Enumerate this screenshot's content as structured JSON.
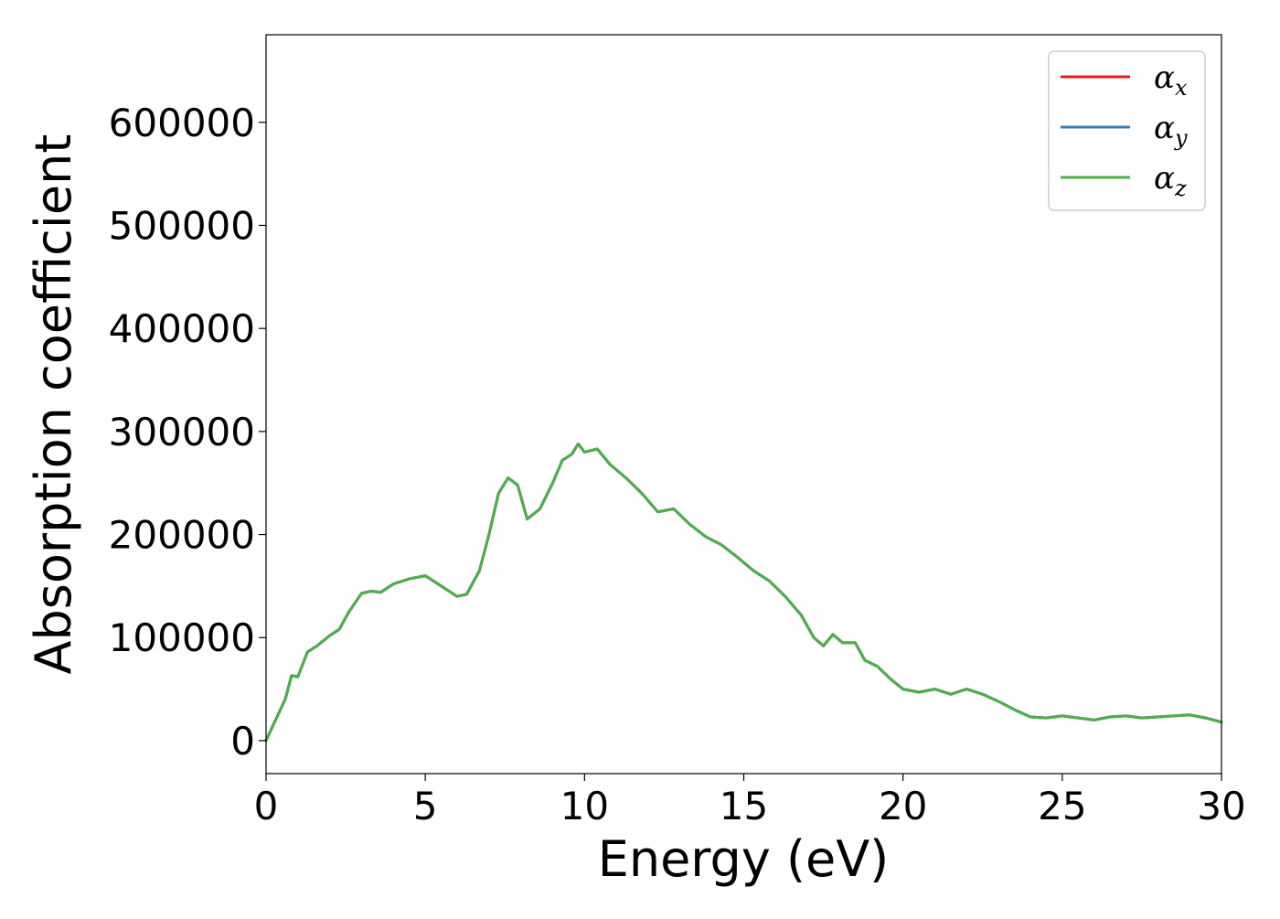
{
  "chart_data": {
    "type": "line",
    "xlabel": "Energy (eV)",
    "ylabel": "Absorption coefficient",
    "xlim": [
      0,
      30
    ],
    "ylim": [
      -32000,
      685000
    ],
    "xticks": [
      0,
      5,
      10,
      15,
      20,
      25,
      30
    ],
    "xtick_labels": [
      "0",
      "5",
      "10",
      "15",
      "20",
      "25",
      "30"
    ],
    "yticks": [
      0,
      100000,
      200000,
      300000,
      400000,
      500000,
      600000
    ],
    "ytick_labels": [
      "0",
      "100000",
      "200000",
      "300000",
      "400000",
      "500000",
      "600000"
    ],
    "grid": false,
    "legend_position": "top-right",
    "x": [
      0,
      0.3,
      0.6,
      0.8,
      1.0,
      1.3,
      1.6,
      2.0,
      2.3,
      2.6,
      3.0,
      3.3,
      3.6,
      4.0,
      4.5,
      5.0,
      5.5,
      6.0,
      6.3,
      6.7,
      7.0,
      7.3,
      7.6,
      7.9,
      8.2,
      8.6,
      9.0,
      9.3,
      9.6,
      9.8,
      10.0,
      10.4,
      10.8,
      11.3,
      11.8,
      12.3,
      12.8,
      13.3,
      13.8,
      14.3,
      14.8,
      15.3,
      15.8,
      16.3,
      16.8,
      17.2,
      17.5,
      17.8,
      18.1,
      18.5,
      18.8,
      19.2,
      19.6,
      20.0,
      20.5,
      21.0,
      21.5,
      22.0,
      22.5,
      23.0,
      23.5,
      24.0,
      24.5,
      25.0,
      25.5,
      26.0,
      26.5,
      27.0,
      27.5,
      28.0,
      28.5,
      29.0,
      29.5,
      30.0
    ],
    "series": [
      {
        "name": "α_x",
        "color": "#e41a1c",
        "values": [
          0,
          20000,
          40000,
          63000,
          62000,
          86000,
          92000,
          102000,
          108000,
          125000,
          143000,
          145000,
          144000,
          152000,
          157000,
          160000,
          150000,
          140000,
          142000,
          165000,
          200000,
          240000,
          255000,
          248000,
          215000,
          225000,
          250000,
          272000,
          278000,
          288000,
          280000,
          283000,
          268000,
          255000,
          240000,
          222000,
          225000,
          210000,
          198000,
          190000,
          178000,
          165000,
          155000,
          140000,
          122000,
          100000,
          92000,
          103000,
          95000,
          95000,
          78000,
          72000,
          60000,
          50000,
          47000,
          50000,
          45000,
          50000,
          45000,
          38000,
          30000,
          23000,
          22000,
          24000,
          22000,
          20000,
          23000,
          24000,
          22000,
          23000,
          24000,
          25000,
          22000,
          18000
        ]
      },
      {
        "name": "α_y",
        "color": "#377eb8",
        "values": [
          0,
          20000,
          40000,
          63000,
          62000,
          86000,
          92000,
          102000,
          108000,
          125000,
          143000,
          145000,
          144000,
          152000,
          157000,
          160000,
          150000,
          140000,
          142000,
          165000,
          200000,
          240000,
          255000,
          248000,
          215000,
          225000,
          250000,
          272000,
          278000,
          288000,
          280000,
          283000,
          268000,
          255000,
          240000,
          222000,
          225000,
          210000,
          198000,
          190000,
          178000,
          165000,
          155000,
          140000,
          122000,
          100000,
          92000,
          103000,
          95000,
          95000,
          78000,
          72000,
          60000,
          50000,
          47000,
          50000,
          45000,
          50000,
          45000,
          38000,
          30000,
          23000,
          22000,
          24000,
          22000,
          20000,
          23000,
          24000,
          22000,
          23000,
          24000,
          25000,
          22000,
          18000
        ]
      },
      {
        "name": "α_z",
        "color": "#4daf4a",
        "values": [
          0,
          20000,
          40000,
          63000,
          62000,
          86000,
          92000,
          102000,
          108000,
          125000,
          143000,
          145000,
          144000,
          152000,
          157000,
          160000,
          150000,
          140000,
          142000,
          165000,
          200000,
          240000,
          255000,
          248000,
          215000,
          225000,
          250000,
          272000,
          278000,
          288000,
          280000,
          283000,
          268000,
          255000,
          240000,
          222000,
          225000,
          210000,
          198000,
          190000,
          178000,
          165000,
          155000,
          140000,
          122000,
          100000,
          92000,
          103000,
          95000,
          95000,
          78000,
          72000,
          60000,
          50000,
          47000,
          50000,
          45000,
          50000,
          45000,
          38000,
          30000,
          23000,
          22000,
          24000,
          22000,
          20000,
          23000,
          24000,
          22000,
          23000,
          24000,
          25000,
          22000,
          18000
        ]
      }
    ],
    "legend": [
      {
        "symbol": "α",
        "subscript": "x",
        "color": "#e41a1c"
      },
      {
        "symbol": "α",
        "subscript": "y",
        "color": "#377eb8"
      },
      {
        "symbol": "α",
        "subscript": "z",
        "color": "#4daf4a"
      }
    ]
  }
}
